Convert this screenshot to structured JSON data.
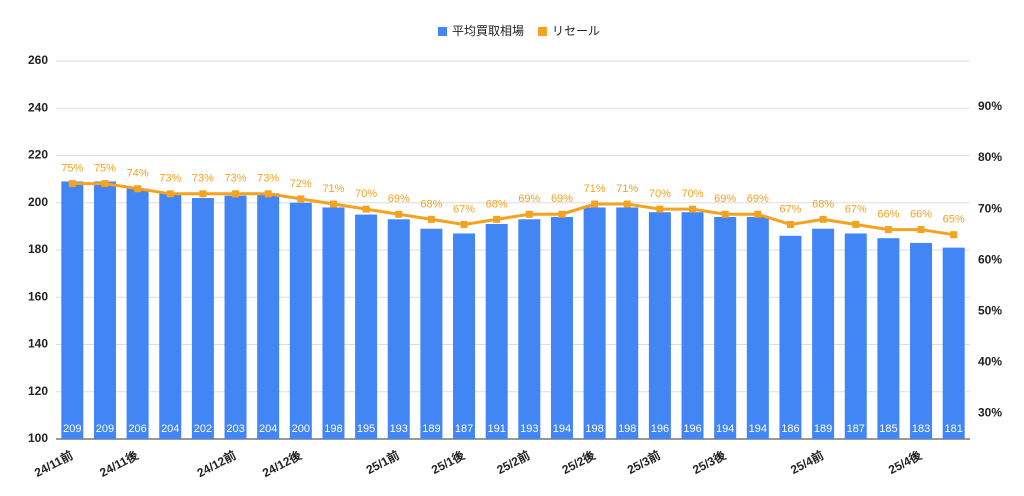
{
  "chart_data": {
    "type": "bar",
    "categories": [
      "24/11前",
      null,
      "24/11後",
      null,
      null,
      "24/12前",
      null,
      "24/12後",
      null,
      null,
      "25/1前",
      null,
      "25/1後",
      null,
      "25/2前",
      null,
      "25/2後",
      null,
      "25/3前",
      null,
      "25/3後",
      null,
      null,
      "25/4前",
      null,
      null,
      "25/4後",
      null
    ],
    "series": [
      {
        "name": "平均買取相場",
        "type": "bar",
        "color": "#4285f4",
        "values": [
          209,
          209,
          206,
          204,
          202,
          203,
          204,
          200,
          198,
          195,
          193,
          189,
          187,
          191,
          193,
          194,
          198,
          198,
          196,
          196,
          194,
          194,
          186,
          189,
          187,
          185,
          183,
          181
        ]
      },
      {
        "name": "リセール",
        "type": "line",
        "axis": "y2",
        "color": "#f4a21f",
        "values": [
          75,
          75,
          74,
          73,
          73,
          73,
          73,
          72,
          71,
          70,
          69,
          68,
          67,
          68,
          69,
          69,
          71,
          71,
          70,
          70,
          69,
          69,
          67,
          68,
          67,
          66,
          66,
          65
        ],
        "value_labels": [
          "75%",
          "75%",
          "74%",
          "73%",
          "73%",
          "73%",
          "73%",
          "72%",
          "71%",
          "70%",
          "69%",
          "68%",
          "67%",
          "68%",
          "69%",
          "69%",
          "71%",
          "71%",
          "70%",
          "70%",
          "69%",
          "69%",
          "67%",
          "68%",
          "67%",
          "66%",
          "66%",
          "65%"
        ]
      }
    ],
    "ylim": [
      100,
      260
    ],
    "yticks": [
      100,
      120,
      140,
      160,
      180,
      200,
      220,
      240,
      260
    ],
    "y2lim": [
      25,
      99
    ],
    "y2ticks": [
      {
        "value": 30,
        "label": "30%"
      },
      {
        "value": 40,
        "label": "40%"
      },
      {
        "value": 50,
        "label": "50%"
      },
      {
        "value": 60,
        "label": "60%"
      },
      {
        "value": 70,
        "label": "70%"
      },
      {
        "value": 80,
        "label": "80%"
      },
      {
        "value": 90,
        "label": "90%"
      }
    ],
    "grid": true,
    "legend": "top"
  }
}
